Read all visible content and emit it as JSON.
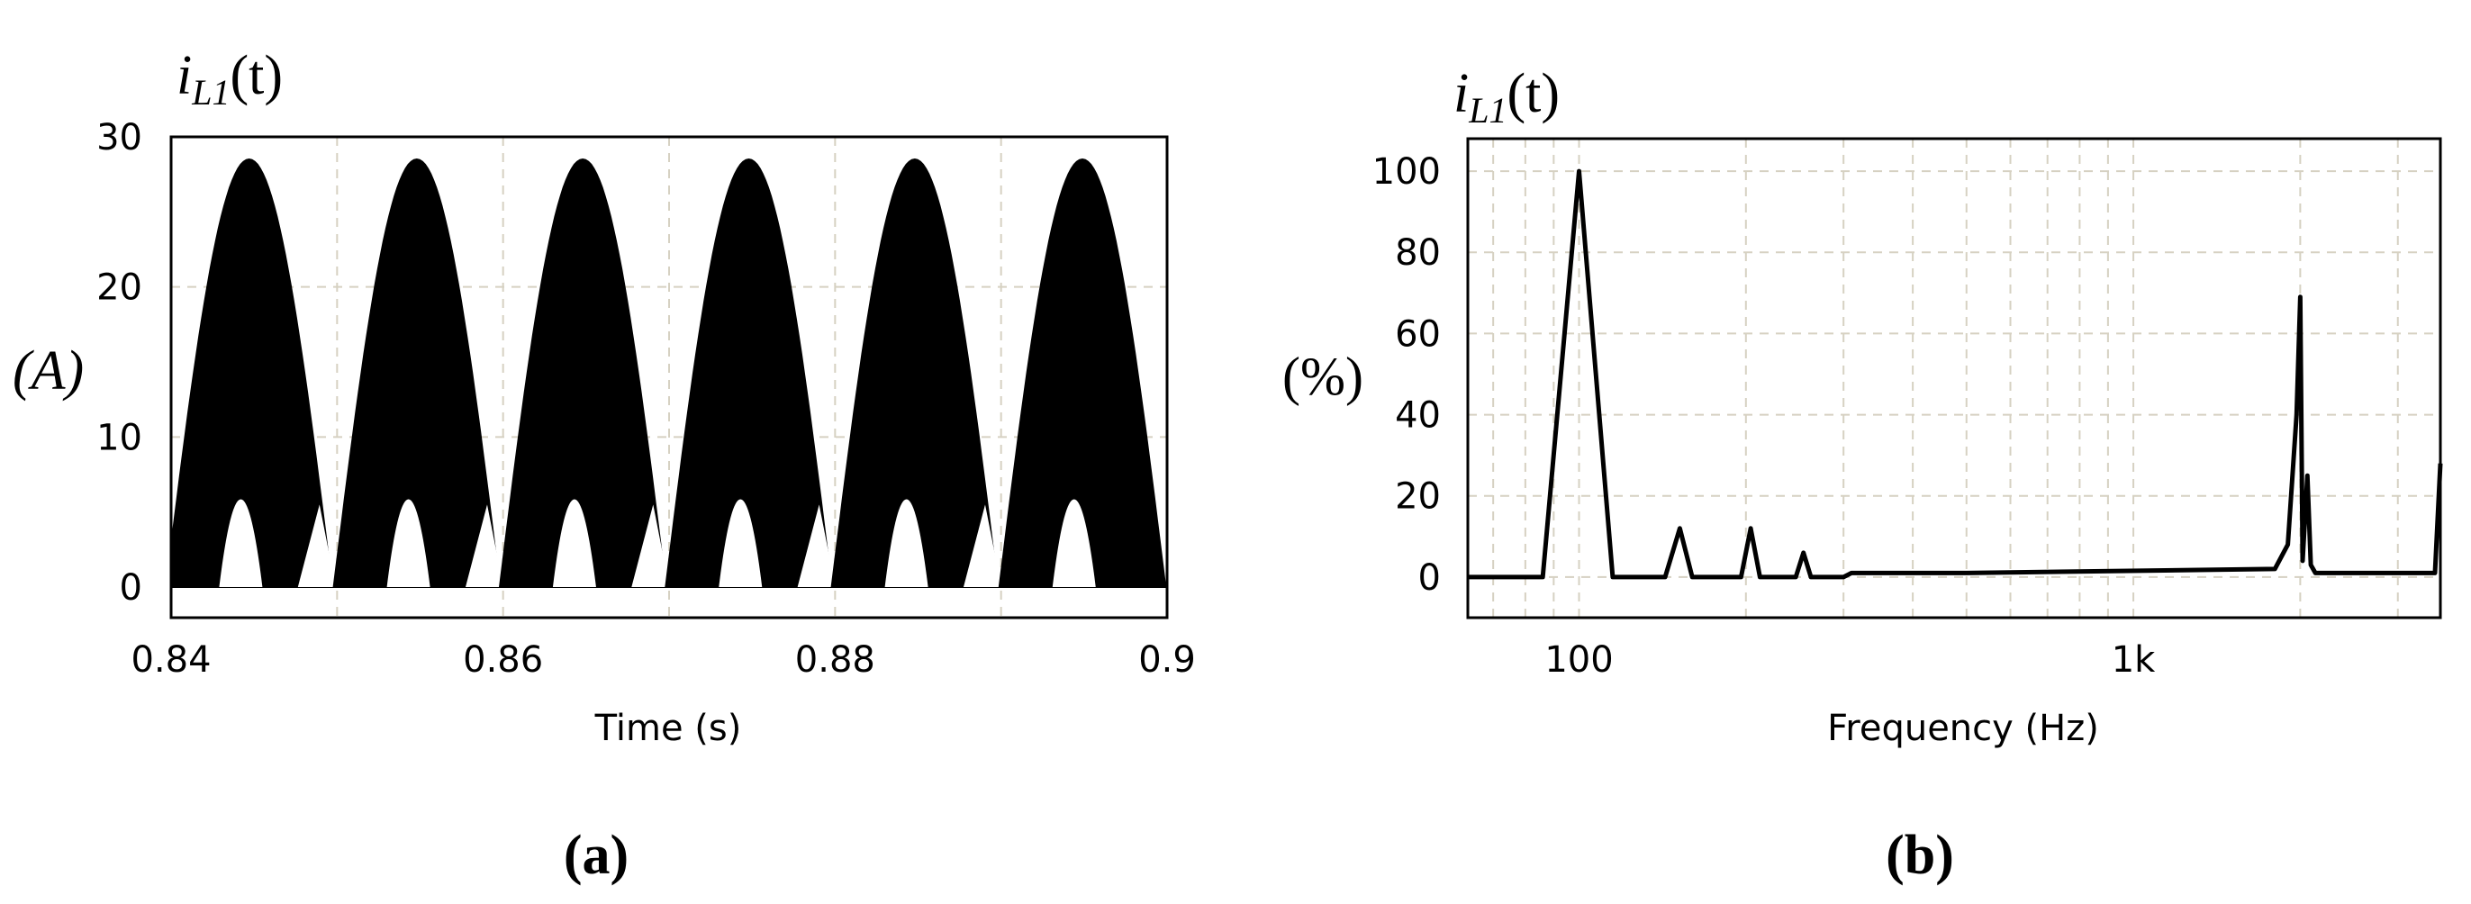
{
  "colors": {
    "trace": "#000000",
    "grid": "#d6d1c2",
    "frame": "#000000",
    "background": "#ffffff"
  },
  "panels": [
    {
      "label": "(a)",
      "title_var": "i",
      "title_sub": "L1",
      "title_arg": "(t)",
      "unit": "(A)"
    },
    {
      "label": "(b)",
      "title_var": "i",
      "title_sub": "L1",
      "title_arg": "(t)",
      "unit": "(%)"
    }
  ],
  "chart_data": [
    {
      "type": "line",
      "description_kind": "time-domain switching current with sinusoidal envelope",
      "xlabel": "Time (s)",
      "ylabel": "(A)",
      "xlim": [
        0.84,
        0.9
      ],
      "ylim": [
        0,
        30
      ],
      "x_ticks": [
        0.84,
        0.86,
        0.88,
        0.9
      ],
      "x_tick_labels": [
        "0.84",
        "0.86",
        "0.88",
        "0.9"
      ],
      "y_ticks": [
        0,
        10,
        20,
        30
      ],
      "y_tick_labels": [
        "0",
        "10",
        "20",
        "30"
      ],
      "grid": true,
      "envelope_peak_times": [
        0.8447,
        0.8548,
        0.8648,
        0.8748,
        0.8849,
        0.8949
      ],
      "envelope_peak_value": 28.5,
      "envelope_zero_times": [
        0.8397,
        0.8498,
        0.8598,
        0.8698,
        0.8798,
        0.8899
      ],
      "envelope_period_s": 0.01,
      "inner_bump_value": 6.5,
      "lower_band_floor": 0
    },
    {
      "type": "line",
      "description_kind": "harmonic spectrum",
      "xlabel": "Frequency (Hz)",
      "ylabel": "(%)",
      "xscale": "log",
      "xlim": [
        63,
        3580
      ],
      "ylim": [
        -10,
        108
      ],
      "x_ticks": [
        100,
        1000
      ],
      "x_tick_labels": [
        "100",
        "1k"
      ],
      "y_ticks": [
        0,
        20,
        40,
        60,
        80,
        100
      ],
      "y_tick_labels": [
        "0",
        "20",
        "40",
        "60",
        "80",
        "100"
      ],
      "grid": true,
      "x": [
        63,
        86,
        100,
        115,
        143,
        152,
        160,
        196,
        204,
        212,
        246,
        254,
        262,
        300,
        310,
        500,
        1800,
        1900,
        1970,
        2000,
        2020,
        2060,
        2090,
        2130,
        3500,
        3580
      ],
      "y": [
        0,
        0,
        100,
        0,
        0,
        12,
        0,
        0,
        12,
        0,
        0,
        6,
        0,
        0,
        1,
        1,
        2,
        8,
        40,
        69,
        4,
        25,
        3,
        1,
        1,
        28
      ]
    }
  ]
}
